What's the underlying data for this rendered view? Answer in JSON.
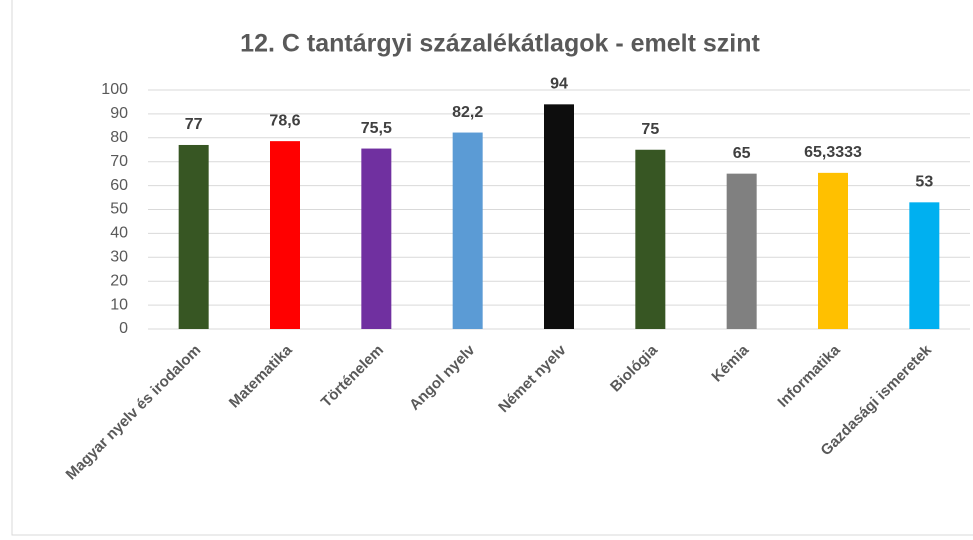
{
  "chart_data": {
    "type": "bar",
    "title": "12. C tantárgyi százalékátlagok - emelt szint",
    "categories": [
      "Magyar nyelv és irodalom",
      "Matematika",
      "Történelem",
      "Angol nyelv",
      "Német nyelv",
      "Biológia",
      "Kémia",
      "Informatika",
      "Gazdasági ismeretek"
    ],
    "values": [
      77,
      78.6,
      75.5,
      82.2,
      94,
      75,
      65,
      65.3333,
      53
    ],
    "value_labels": [
      "77",
      "78,6",
      "75,5",
      "82,2",
      "94",
      "75",
      "65",
      "65,3333",
      "53"
    ],
    "colors": [
      "#375623",
      "#ff0000",
      "#7030a0",
      "#5b9bd5",
      "#0d0d0d",
      "#375623",
      "#808080",
      "#ffc000",
      "#00b0f0"
    ],
    "ylim": [
      0,
      100
    ],
    "yticks": [
      0,
      10,
      20,
      30,
      40,
      50,
      60,
      70,
      80,
      90,
      100
    ],
    "grid": true
  }
}
